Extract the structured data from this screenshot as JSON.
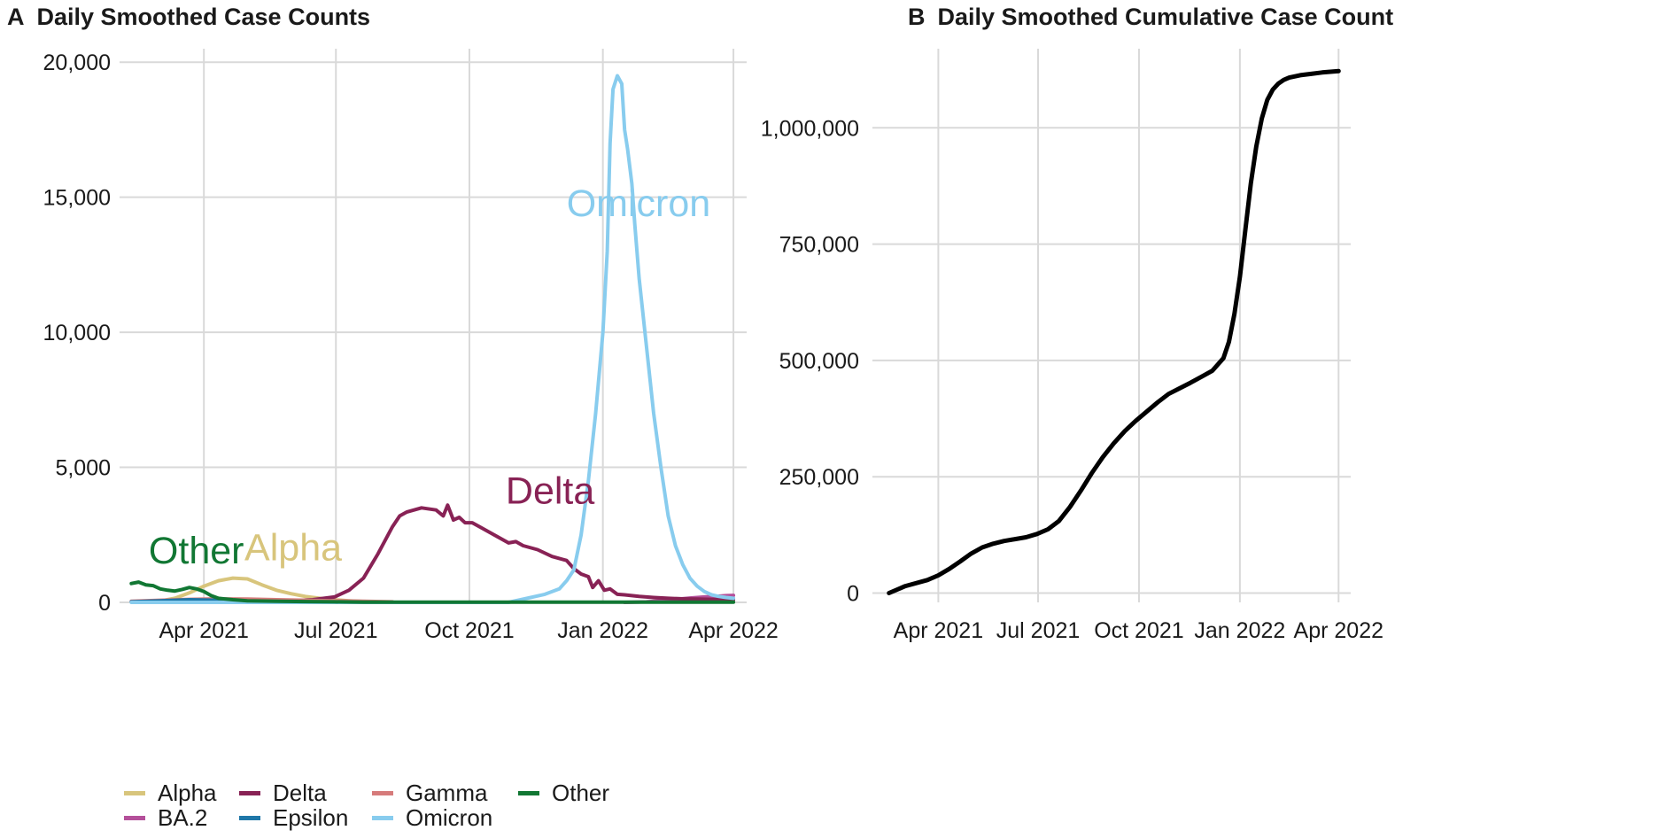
{
  "chart_data": [
    {
      "type": "line",
      "panel": "A",
      "title": "Daily Smoothed Case Counts",
      "xlabel": "",
      "ylabel": "",
      "x_ticks": [
        "Apr 2021",
        "Jul 2021",
        "Oct 2021",
        "Jan 2022",
        "Apr 2022"
      ],
      "y_ticks": [
        "0",
        "5,000",
        "10,000",
        "15,000",
        "20,000"
      ],
      "ylim": [
        0,
        20500
      ],
      "x_unit": "days since 2021-01-01",
      "x_tick_values": [
        90,
        181,
        273,
        365,
        455
      ],
      "xlim": [
        38,
        458
      ],
      "grid": true,
      "legend_position": "bottom",
      "series": [
        {
          "name": "Alpha",
          "color": "#D8C57C",
          "x": [
            45,
            60,
            70,
            80,
            90,
            100,
            110,
            120,
            130,
            140,
            150,
            160,
            170,
            180,
            190,
            200
          ],
          "y": [
            10,
            50,
            150,
            350,
            600,
            800,
            900,
            870,
            650,
            450,
            320,
            220,
            150,
            100,
            60,
            30
          ]
        },
        {
          "name": "BA.2",
          "color": "#B4509A",
          "x": [
            380,
            395,
            405,
            415,
            425,
            435,
            445,
            450,
            455
          ],
          "y": [
            0,
            20,
            60,
            110,
            160,
            200,
            230,
            250,
            260
          ]
        },
        {
          "name": "Delta",
          "color": "#882255",
          "x": [
            150,
            165,
            180,
            190,
            200,
            210,
            220,
            225,
            230,
            240,
            250,
            255,
            258,
            262,
            266,
            270,
            275,
            280,
            290,
            300,
            305,
            310,
            320,
            330,
            340,
            345,
            350,
            355,
            358,
            362,
            366,
            370,
            375,
            380,
            390,
            400,
            410,
            420,
            430,
            440,
            450,
            455
          ],
          "y": [
            60,
            100,
            200,
            450,
            900,
            1800,
            2800,
            3200,
            3350,
            3500,
            3420,
            3200,
            3600,
            3050,
            3150,
            2950,
            2950,
            2800,
            2500,
            2200,
            2250,
            2100,
            1950,
            1700,
            1550,
            1250,
            1050,
            950,
            550,
            800,
            450,
            500,
            300,
            280,
            220,
            180,
            150,
            130,
            120,
            110,
            100,
            100
          ]
        },
        {
          "name": "Gamma",
          "color": "#D67B7B",
          "x": [
            40,
            60,
            80,
            100,
            120,
            140,
            160,
            180,
            200,
            220
          ],
          "y": [
            40,
            80,
            110,
            130,
            120,
            100,
            80,
            60,
            40,
            20
          ]
        },
        {
          "name": "Epsilon",
          "color": "#1F77A8",
          "x": [
            40,
            60,
            80,
            100,
            120,
            140,
            160
          ],
          "y": [
            20,
            60,
            100,
            80,
            50,
            20,
            10
          ]
        },
        {
          "name": "Omicron",
          "color": "#88CCEE",
          "x": [
            40,
            100,
            200,
            300,
            325,
            335,
            340,
            345,
            350,
            355,
            360,
            365,
            368,
            370,
            372,
            375,
            378,
            380,
            382,
            385,
            387,
            390,
            395,
            400,
            405,
            410,
            415,
            420,
            425,
            430,
            435,
            440,
            445,
            450,
            455
          ],
          "y": [
            0,
            0,
            0,
            0,
            300,
            500,
            800,
            1200,
            2500,
            4500,
            7000,
            10000,
            13000,
            17000,
            19000,
            19500,
            19200,
            17500,
            16800,
            15500,
            14000,
            12000,
            9500,
            7000,
            5000,
            3200,
            2100,
            1400,
            900,
            600,
            400,
            280,
            220,
            180,
            150
          ]
        },
        {
          "name": "Other",
          "color": "#117733",
          "x": [
            40,
            45,
            50,
            55,
            60,
            65,
            70,
            75,
            80,
            85,
            90,
            95,
            100,
            110,
            120,
            140,
            160,
            180,
            200,
            220,
            250,
            300,
            350,
            400,
            455
          ],
          "y": [
            700,
            750,
            650,
            620,
            500,
            450,
            420,
            480,
            550,
            500,
            400,
            250,
            150,
            100,
            60,
            40,
            30,
            20,
            10,
            10,
            10,
            10,
            10,
            10,
            10
          ]
        }
      ],
      "annotations": [
        {
          "text": "Omicron",
          "series": "Omicron",
          "x": 340,
          "y": 14300
        },
        {
          "text": "Delta",
          "series": "Delta",
          "x": 298,
          "y": 3650
        },
        {
          "text": "Alpha",
          "series": "Alpha",
          "x": 118,
          "y": 1550
        },
        {
          "text": "Other",
          "series": "Other",
          "x": 52,
          "y": 1450
        }
      ]
    },
    {
      "type": "line",
      "panel": "B",
      "title": "Daily Smoothed Cumulative Case Count",
      "xlabel": "",
      "ylabel": "",
      "x_ticks": [
        "Apr 2021",
        "Jul 2021",
        "Oct 2021",
        "Jan 2022",
        "Apr 2022"
      ],
      "y_ticks": [
        "0",
        "250,000",
        "500,000",
        "750,000",
        "1,000,000"
      ],
      "ylim": [
        -20000,
        1170000
      ],
      "x_unit": "days since 2021-01-01",
      "x_tick_values": [
        90,
        181,
        273,
        365,
        455
      ],
      "xlim": [
        38,
        458
      ],
      "grid": true,
      "series": [
        {
          "name": "Cumulative",
          "color": "#000000",
          "x": [
            45,
            60,
            80,
            90,
            100,
            110,
            120,
            130,
            140,
            150,
            160,
            170,
            180,
            190,
            200,
            210,
            220,
            230,
            240,
            250,
            260,
            270,
            280,
            290,
            300,
            310,
            320,
            330,
            340,
            350,
            355,
            360,
            365,
            370,
            375,
            380,
            385,
            390,
            395,
            400,
            405,
            410,
            420,
            430,
            440,
            450,
            455
          ],
          "y": [
            0,
            15000,
            28000,
            38000,
            52000,
            68000,
            85000,
            98000,
            106000,
            112000,
            116000,
            120000,
            127000,
            137000,
            155000,
            185000,
            220000,
            258000,
            292000,
            322000,
            348000,
            370000,
            390000,
            410000,
            428000,
            440000,
            452000,
            465000,
            478000,
            505000,
            540000,
            600000,
            680000,
            780000,
            880000,
            960000,
            1020000,
            1060000,
            1082000,
            1095000,
            1103000,
            1108000,
            1113000,
            1116000,
            1119000,
            1121000,
            1122000
          ]
        }
      ]
    }
  ],
  "panel_a": {
    "letter": "A",
    "title": "Daily Smoothed Case Counts"
  },
  "panel_b": {
    "letter": "B",
    "title": "Daily Smoothed Cumulative Case Count"
  },
  "legend": {
    "items": [
      {
        "label": "Alpha",
        "color": "#D8C57C"
      },
      {
        "label": "BA.2",
        "color": "#B4509A"
      },
      {
        "label": "Delta",
        "color": "#882255"
      },
      {
        "label": "Epsilon",
        "color": "#1F77A8"
      },
      {
        "label": "Gamma",
        "color": "#D67B7B"
      },
      {
        "label": "Omicron",
        "color": "#88CCEE"
      },
      {
        "label": "Other",
        "color": "#117733"
      }
    ]
  }
}
